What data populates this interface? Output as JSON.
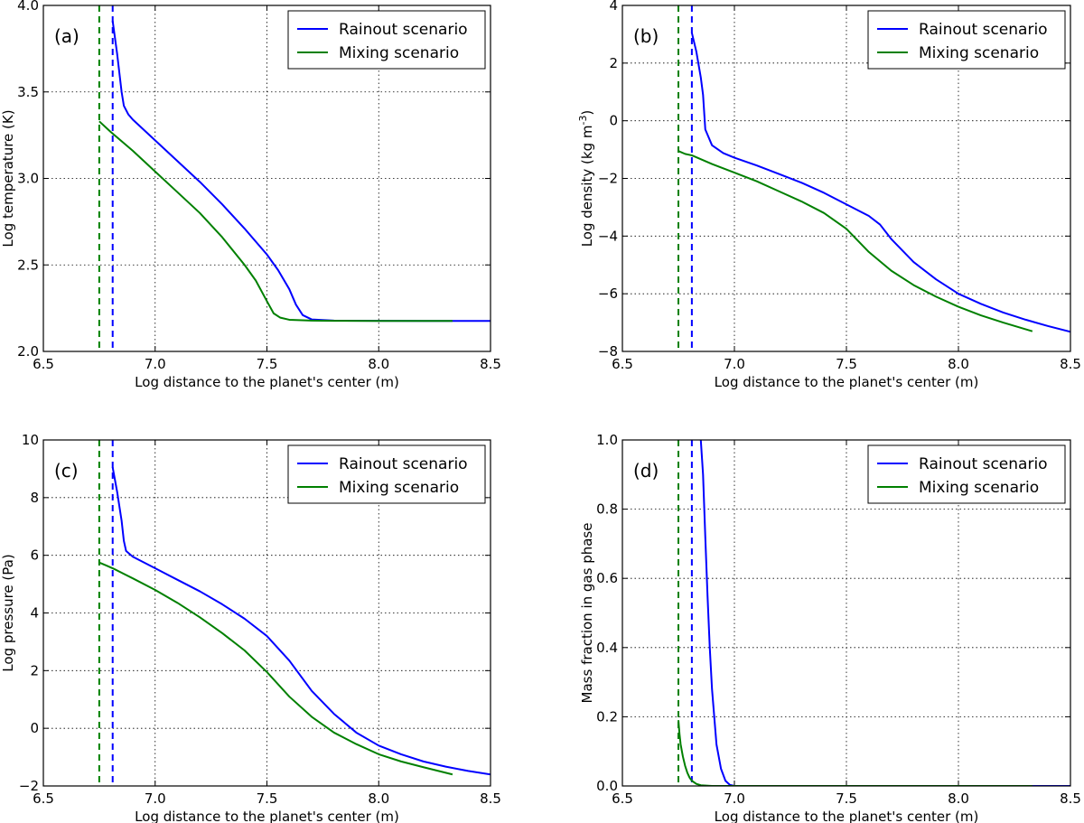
{
  "chart_data": [
    {
      "type": "line",
      "panel_label": "(a)",
      "xlabel": "Log distance to the planet's center (m)",
      "ylabel": "Log temperature (K)",
      "ylabel_sup": "",
      "ylabel_tail": "",
      "xlim": [
        6.5,
        8.5
      ],
      "ylim": [
        2.0,
        4.0
      ],
      "xticks": [
        6.5,
        7.0,
        7.5,
        8.0,
        8.5
      ],
      "xtick_labels": [
        "6.5",
        "7.0",
        "7.5",
        "8.0",
        "8.5"
      ],
      "yticks": [
        2.0,
        2.5,
        3.0,
        3.5,
        4.0
      ],
      "ytick_labels": [
        "2.0",
        "2.5",
        "3.0",
        "3.5",
        "4.0"
      ],
      "grid": true,
      "legend_position": "top-right",
      "series": [
        {
          "name": "Rainout scenario",
          "color": "#0000ff",
          "x": [
            6.81,
            6.83,
            6.85,
            6.86,
            6.88,
            6.9,
            6.95,
            7.0,
            7.1,
            7.2,
            7.3,
            7.4,
            7.5,
            7.55,
            7.6,
            7.63,
            7.66,
            7.7,
            7.8,
            8.0,
            8.2,
            8.4,
            8.5
          ],
          "y": [
            3.91,
            3.72,
            3.5,
            3.42,
            3.37,
            3.34,
            3.28,
            3.22,
            3.1,
            2.98,
            2.85,
            2.71,
            2.56,
            2.47,
            2.36,
            2.27,
            2.21,
            2.185,
            2.178,
            2.177,
            2.176,
            2.176,
            2.176
          ]
        },
        {
          "name": "Mixing scenario",
          "color": "#008000",
          "x": [
            6.75,
            6.8,
            6.9,
            7.0,
            7.1,
            7.2,
            7.3,
            7.4,
            7.45,
            7.5,
            7.53,
            7.56,
            7.6,
            7.7,
            7.8,
            8.0,
            8.2,
            8.33
          ],
          "y": [
            3.33,
            3.27,
            3.16,
            3.04,
            2.92,
            2.8,
            2.66,
            2.5,
            2.41,
            2.29,
            2.22,
            2.195,
            2.183,
            2.178,
            2.177,
            2.176,
            2.176,
            2.176
          ]
        }
      ],
      "vlines": [
        {
          "x": 6.75,
          "color": "#008000",
          "style": "dashed"
        },
        {
          "x": 6.81,
          "color": "#0000ff",
          "style": "dashed"
        }
      ]
    },
    {
      "type": "line",
      "panel_label": "(b)",
      "xlabel": "Log distance to the planet's center (m)",
      "ylabel": "Log density (kg m",
      "ylabel_sup": "-3",
      "ylabel_tail": ")",
      "xlim": [
        6.5,
        8.5
      ],
      "ylim": [
        -8,
        4
      ],
      "xticks": [
        6.5,
        7.0,
        7.5,
        8.0,
        8.5
      ],
      "xtick_labels": [
        "6.5",
        "7.0",
        "7.5",
        "8.0",
        "8.5"
      ],
      "yticks": [
        -8,
        -6,
        -4,
        -2,
        0,
        2,
        4
      ],
      "ytick_labels": [
        "−8",
        "−6",
        "−4",
        "−2",
        "0",
        "2",
        "4"
      ],
      "grid": true,
      "legend_position": "top-right",
      "series": [
        {
          "name": "Rainout scenario",
          "color": "#0000ff",
          "x": [
            6.81,
            6.83,
            6.85,
            6.86,
            6.87,
            6.9,
            6.95,
            7.0,
            7.1,
            7.2,
            7.3,
            7.4,
            7.5,
            7.6,
            7.65,
            7.7,
            7.8,
            7.9,
            8.0,
            8.1,
            8.2,
            8.3,
            8.4,
            8.5
          ],
          "y": [
            3.05,
            2.4,
            1.5,
            0.9,
            -0.3,
            -0.85,
            -1.12,
            -1.28,
            -1.55,
            -1.85,
            -2.15,
            -2.5,
            -2.9,
            -3.3,
            -3.6,
            -4.1,
            -4.9,
            -5.5,
            -6.0,
            -6.35,
            -6.65,
            -6.9,
            -7.12,
            -7.32
          ]
        },
        {
          "name": "Mixing scenario",
          "color": "#008000",
          "x": [
            6.75,
            6.78,
            6.81,
            6.9,
            7.0,
            7.1,
            7.2,
            7.3,
            7.4,
            7.5,
            7.6,
            7.7,
            7.8,
            7.9,
            8.0,
            8.1,
            8.2,
            8.33
          ],
          "y": [
            -1.05,
            -1.15,
            -1.2,
            -1.5,
            -1.8,
            -2.1,
            -2.45,
            -2.8,
            -3.2,
            -3.75,
            -4.55,
            -5.2,
            -5.7,
            -6.1,
            -6.45,
            -6.75,
            -7.0,
            -7.3
          ]
        }
      ],
      "vlines": [
        {
          "x": 6.75,
          "color": "#008000",
          "style": "dashed"
        },
        {
          "x": 6.81,
          "color": "#0000ff",
          "style": "dashed"
        }
      ]
    },
    {
      "type": "line",
      "panel_label": "(c)",
      "xlabel": "Log distance to the planet's center (m)",
      "ylabel": "Log pressure (Pa)",
      "ylabel_sup": "",
      "ylabel_tail": "",
      "xlim": [
        6.5,
        8.5
      ],
      "ylim": [
        -2,
        10
      ],
      "xticks": [
        6.5,
        7.0,
        7.5,
        8.0,
        8.5
      ],
      "xtick_labels": [
        "6.5",
        "7.0",
        "7.5",
        "8.0",
        "8.5"
      ],
      "yticks": [
        -2,
        0,
        2,
        4,
        6,
        8,
        10
      ],
      "ytick_labels": [
        "−2",
        "0",
        "2",
        "4",
        "6",
        "8",
        "10"
      ],
      "grid": true,
      "legend_position": "top-right",
      "series": [
        {
          "name": "Rainout scenario",
          "color": "#0000ff",
          "x": [
            6.81,
            6.83,
            6.85,
            6.86,
            6.87,
            6.9,
            6.95,
            7.0,
            7.1,
            7.2,
            7.3,
            7.4,
            7.5,
            7.6,
            7.7,
            7.8,
            7.9,
            8.0,
            8.1,
            8.2,
            8.3,
            8.4,
            8.5
          ],
          "y": [
            9.05,
            8.2,
            7.2,
            6.5,
            6.15,
            5.95,
            5.75,
            5.55,
            5.15,
            4.75,
            4.3,
            3.8,
            3.2,
            2.35,
            1.3,
            0.5,
            -0.15,
            -0.6,
            -0.9,
            -1.15,
            -1.33,
            -1.48,
            -1.6
          ]
        },
        {
          "name": "Mixing scenario",
          "color": "#008000",
          "x": [
            6.75,
            6.78,
            6.81,
            6.9,
            7.0,
            7.1,
            7.2,
            7.3,
            7.4,
            7.5,
            7.6,
            7.7,
            7.8,
            7.9,
            8.0,
            8.1,
            8.2,
            8.33
          ],
          "y": [
            5.75,
            5.65,
            5.55,
            5.2,
            4.8,
            4.35,
            3.85,
            3.3,
            2.7,
            1.95,
            1.1,
            0.4,
            -0.15,
            -0.55,
            -0.9,
            -1.15,
            -1.35,
            -1.6
          ]
        }
      ],
      "vlines": [
        {
          "x": 6.75,
          "color": "#008000",
          "style": "dashed"
        },
        {
          "x": 6.81,
          "color": "#0000ff",
          "style": "dashed"
        }
      ]
    },
    {
      "type": "line",
      "panel_label": "(d)",
      "xlabel": "Log distance to the planet's center (m)",
      "ylabel": "Mass fraction in gas phase",
      "ylabel_sup": "",
      "ylabel_tail": "",
      "xlim": [
        6.5,
        8.5
      ],
      "ylim": [
        0.0,
        1.0
      ],
      "xticks": [
        6.5,
        7.0,
        7.5,
        8.0,
        8.5
      ],
      "xtick_labels": [
        "6.5",
        "7.0",
        "7.5",
        "8.0",
        "8.5"
      ],
      "yticks": [
        0.0,
        0.2,
        0.4,
        0.6,
        0.8,
        1.0
      ],
      "ytick_labels": [
        "0.0",
        "0.2",
        "0.4",
        "0.6",
        "0.8",
        "1.0"
      ],
      "grid": true,
      "legend_position": "top-right",
      "series": [
        {
          "name": "Rainout scenario",
          "color": "#0000ff",
          "x": [
            6.85,
            6.86,
            6.87,
            6.88,
            6.89,
            6.9,
            6.92,
            6.94,
            6.96,
            6.98,
            7.0,
            7.5,
            8.0,
            8.5
          ],
          "y": [
            1.0,
            0.9,
            0.72,
            0.55,
            0.4,
            0.28,
            0.12,
            0.05,
            0.015,
            0.003,
            0.0,
            0.0,
            0.0,
            0.0
          ]
        },
        {
          "name": "Mixing scenario",
          "color": "#008000",
          "x": [
            6.75,
            6.755,
            6.76,
            6.77,
            6.78,
            6.79,
            6.8,
            6.81,
            6.83,
            6.85,
            6.9,
            7.0,
            7.5,
            8.0,
            8.33
          ],
          "y": [
            0.19,
            0.15,
            0.12,
            0.085,
            0.058,
            0.038,
            0.024,
            0.015,
            0.006,
            0.002,
            0.0,
            0.0,
            0.0,
            0.0,
            0.0
          ]
        }
      ],
      "vlines": [
        {
          "x": 6.75,
          "color": "#008000",
          "style": "dashed"
        },
        {
          "x": 6.81,
          "color": "#0000ff",
          "style": "dashed"
        }
      ]
    }
  ]
}
